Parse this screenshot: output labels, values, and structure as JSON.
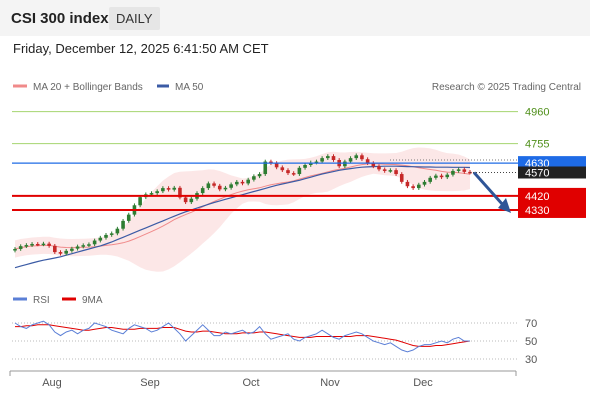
{
  "header": {
    "title": "CSI 300 index",
    "timeframe": "DAILY"
  },
  "timestamp": "Friday, December 12, 2025 6:41:50 AM CET",
  "colors": {
    "bollinger": "#f08a8a",
    "bollinger_fill": "#fbe3e3",
    "ma50": "#3b5ba5",
    "candle_up": "#2e7d32",
    "candle_down": "#c62828",
    "pivot": "#1e6be6",
    "support": "#e00000",
    "resistance": "#a5d46f",
    "resistance_label": "#4f8f1a",
    "rsi": "#5b7fd6",
    "rsi_ma": "#e00000",
    "last_price": "#222222",
    "arrow": "#2f5597"
  },
  "chart_data": [
    {
      "type": "candlestick",
      "legend": [
        {
          "label": "MA 20 + Bollinger Bands",
          "color": "#f08a8a"
        },
        {
          "label": "MA 50",
          "color": "#3b5ba5"
        }
      ],
      "watermark": "Research © 2025 Trading Central",
      "x_months": [
        "Aug",
        "Sep",
        "Oct",
        "Nov",
        "Dec"
      ],
      "ylim": [
        3830,
        5060
      ],
      "levels": [
        {
          "label": "4960",
          "value": 4960,
          "kind": "resistance"
        },
        {
          "label": "4755",
          "value": 4755,
          "kind": "resistance"
        },
        {
          "label": "4630",
          "value": 4630,
          "kind": "pivot"
        },
        {
          "label": "4570",
          "value": 4570,
          "kind": "last"
        },
        {
          "label": "4420",
          "value": 4420,
          "kind": "support"
        },
        {
          "label": "4330",
          "value": 4330,
          "kind": "support"
        }
      ],
      "close_series": [
        4080,
        4098,
        4105,
        4112,
        4110,
        4114,
        4100,
        4060,
        4050,
        4068,
        4082,
        4096,
        4104,
        4110,
        4134,
        4152,
        4170,
        4180,
        4210,
        4260,
        4300,
        4360,
        4412,
        4430,
        4438,
        4450,
        4470,
        4460,
        4472,
        4410,
        4380,
        4402,
        4438,
        4470,
        4500,
        4485,
        4462,
        4472,
        4494,
        4510,
        4500,
        4524,
        4546,
        4560,
        4640,
        4630,
        4603,
        4585,
        4566,
        4560,
        4600,
        4618,
        4634,
        4640,
        4662,
        4675,
        4650,
        4610,
        4640,
        4662,
        4680,
        4655,
        4630,
        4610,
        4590,
        4580,
        4585,
        4560,
        4510,
        4482,
        4470,
        4492,
        4510,
        4536,
        4550,
        4540,
        4556,
        4580,
        4590,
        4574,
        4570
      ],
      "ma50_series": [
        3960,
        3970,
        3980,
        3990,
        4000,
        4008,
        4015,
        4022,
        4030,
        4040,
        4050,
        4060,
        4070,
        4080,
        4090,
        4100,
        4112,
        4125,
        4140,
        4155,
        4170,
        4185,
        4200,
        4215,
        4230,
        4245,
        4260,
        4275,
        4290,
        4305,
        4318,
        4330,
        4342,
        4354,
        4366,
        4378,
        4388,
        4398,
        4408,
        4418,
        4428,
        4438,
        4448,
        4458,
        4468,
        4478,
        4488,
        4496,
        4504,
        4512,
        4520,
        4530,
        4540,
        4550,
        4560,
        4568,
        4576,
        4584,
        4590,
        4595,
        4600,
        4604,
        4606,
        4608,
        4609,
        4610,
        4610,
        4610,
        4609,
        4608,
        4607,
        4606,
        4605,
        4605,
        4604,
        4604,
        4604,
        4603,
        4603,
        4603,
        4602
      ]
    },
    {
      "type": "line",
      "legend": [
        {
          "label": "RSI",
          "color": "#5b7fd6"
        },
        {
          "label": "9MA",
          "color": "#e00000"
        }
      ],
      "ylim": [
        20,
        80
      ],
      "yticks": [
        "70",
        "50",
        "30"
      ],
      "series": [
        {
          "name": "RSI",
          "values": [
            70,
            66,
            64,
            68,
            70,
            72,
            68,
            60,
            56,
            60,
            62,
            58,
            62,
            64,
            70,
            68,
            66,
            62,
            60,
            58,
            64,
            68,
            66,
            64,
            60,
            62,
            66,
            70,
            64,
            58,
            50,
            56,
            62,
            68,
            62,
            56,
            56,
            60,
            58,
            60,
            62,
            58,
            60,
            66,
            58,
            52,
            54,
            56,
            58,
            52,
            50,
            54,
            56,
            58,
            62,
            58,
            54,
            52,
            56,
            58,
            60,
            58,
            54,
            50,
            48,
            46,
            48,
            44,
            40,
            38,
            40,
            44,
            46,
            46,
            48,
            50,
            48,
            52,
            54,
            50,
            50
          ]
        },
        {
          "name": "9MA",
          "values": [
            66,
            66,
            67,
            67,
            68,
            68,
            68,
            67,
            66,
            65,
            64,
            63,
            62,
            62,
            63,
            64,
            65,
            65,
            64,
            63,
            63,
            63,
            64,
            64,
            64,
            64,
            65,
            65,
            65,
            63,
            61,
            60,
            60,
            61,
            61,
            60,
            59,
            58,
            58,
            58,
            59,
            59,
            59,
            60,
            60,
            59,
            58,
            57,
            56,
            55,
            54,
            54,
            54,
            55,
            55,
            55,
            55,
            55,
            55,
            55,
            56,
            56,
            56,
            55,
            54,
            53,
            52,
            51,
            49,
            47,
            45,
            44,
            44,
            44,
            45,
            45,
            46,
            47,
            48,
            49,
            50
          ]
        }
      ]
    }
  ]
}
